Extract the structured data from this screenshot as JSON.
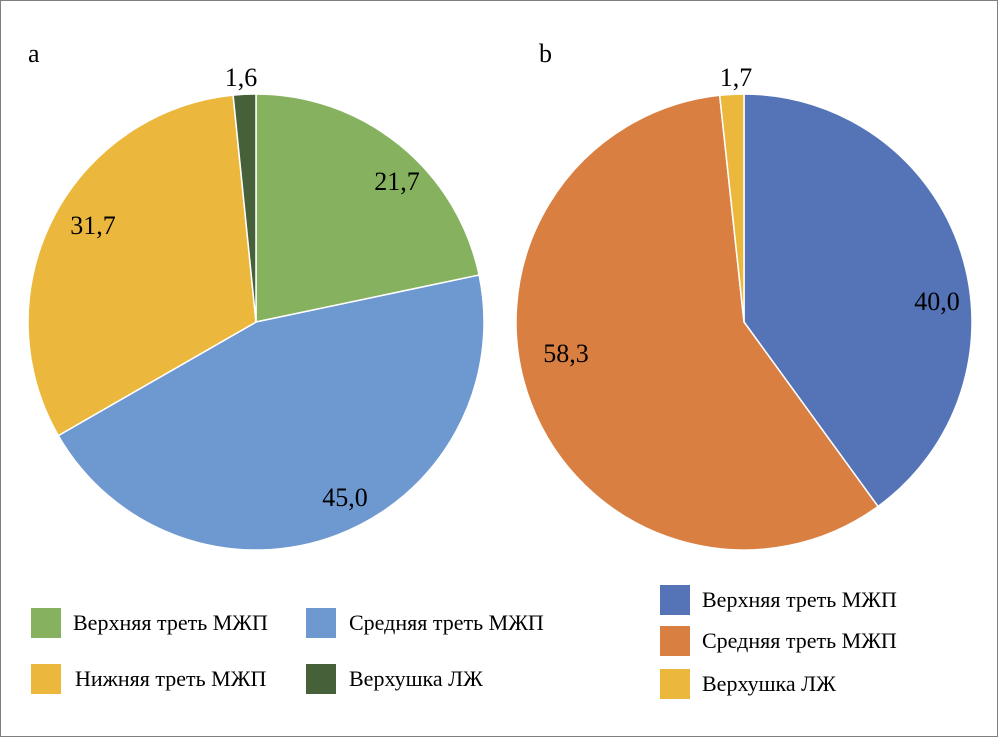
{
  "chart_data": [
    {
      "type": "pie",
      "panel_label": "a",
      "slices": [
        {
          "name": "Верхняя треть МЖП",
          "value": 21.7,
          "label": "21,7",
          "color": "#86b25f"
        },
        {
          "name": "Средняя треть МЖП",
          "value": 45.0,
          "label": "45,0",
          "color": "#6d98d0"
        },
        {
          "name": "Нижняя треть МЖП",
          "value": 31.7,
          "label": "31,7",
          "color": "#ebb83d"
        },
        {
          "name": "Верхушка ЛЖ",
          "value": 1.6,
          "label": "1,6",
          "color": "#46613a"
        }
      ],
      "start": "12 o'clock",
      "direction": "clockwise",
      "legend_placement": "bottom"
    },
    {
      "type": "pie",
      "panel_label": "b",
      "slices": [
        {
          "name": "Верхняя треть МЖП",
          "value": 40.0,
          "label": "40,0",
          "color": "#5574b8"
        },
        {
          "name": "Средняя треть МЖП",
          "value": 58.3,
          "label": "58,3",
          "color": "#d97f41"
        },
        {
          "name": "Верхушка ЛЖ",
          "value": 1.7,
          "label": "1,7",
          "color": "#ebb83d"
        }
      ],
      "start": "12 o'clock",
      "direction": "clockwise",
      "legend_placement": "bottom"
    }
  ]
}
